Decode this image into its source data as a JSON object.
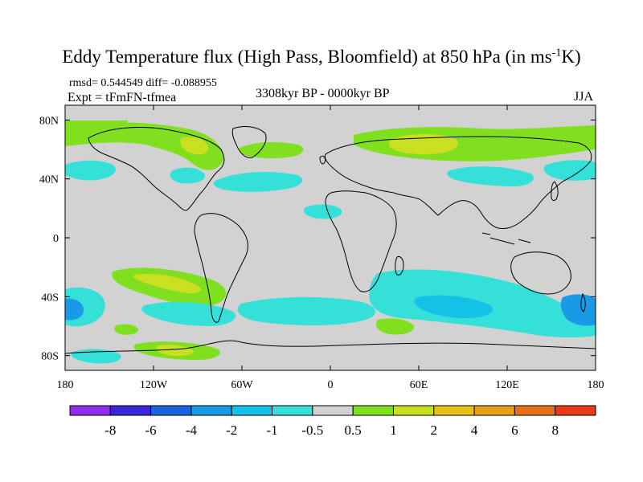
{
  "header": {
    "title": "Eddy Temperature flux (High Pass, Bloomfield) at 850 hPa (in ms",
    "title_sup": "-1",
    "title_end": "K)",
    "stats": "rmsd= 0.544549 diff= -0.088955",
    "experiment": "Expt = tFmFN-tfmea",
    "period": "3308kyr BP - 0000kyr BP",
    "season": "JJA"
  },
  "map": {
    "lon_range": [
      -180,
      180
    ],
    "lat_range": [
      -90,
      90
    ],
    "x_ticks": [
      {
        "lon": -180,
        "label": "180"
      },
      {
        "lon": -120,
        "label": "120W"
      },
      {
        "lon": -60,
        "label": "60W"
      },
      {
        "lon": 0,
        "label": "0"
      },
      {
        "lon": 60,
        "label": "60E"
      },
      {
        "lon": 120,
        "label": "120E"
      },
      {
        "lon": 180,
        "label": "180"
      }
    ],
    "y_ticks": [
      {
        "lat": 80,
        "label": "80N"
      },
      {
        "lat": 40,
        "label": "40N"
      },
      {
        "lat": 0,
        "label": "0"
      },
      {
        "lat": -40,
        "label": "40S"
      },
      {
        "lat": -80,
        "label": "80S"
      }
    ],
    "background_color": "#d2d2d2"
  },
  "colorbar": {
    "colors": [
      "#8e2ee8",
      "#3a28d8",
      "#1a64e0",
      "#1a9ae6",
      "#14c2e8",
      "#34e0d8",
      "#d2d2d2",
      "#80e020",
      "#c8e020",
      "#e8c018",
      "#e8a018",
      "#e87018",
      "#e83a18"
    ],
    "labels": [
      "-8",
      "-6",
      "-4",
      "-2",
      "-1",
      "-0.5",
      "0.5",
      "1",
      "2",
      "4",
      "6",
      "8"
    ]
  }
}
